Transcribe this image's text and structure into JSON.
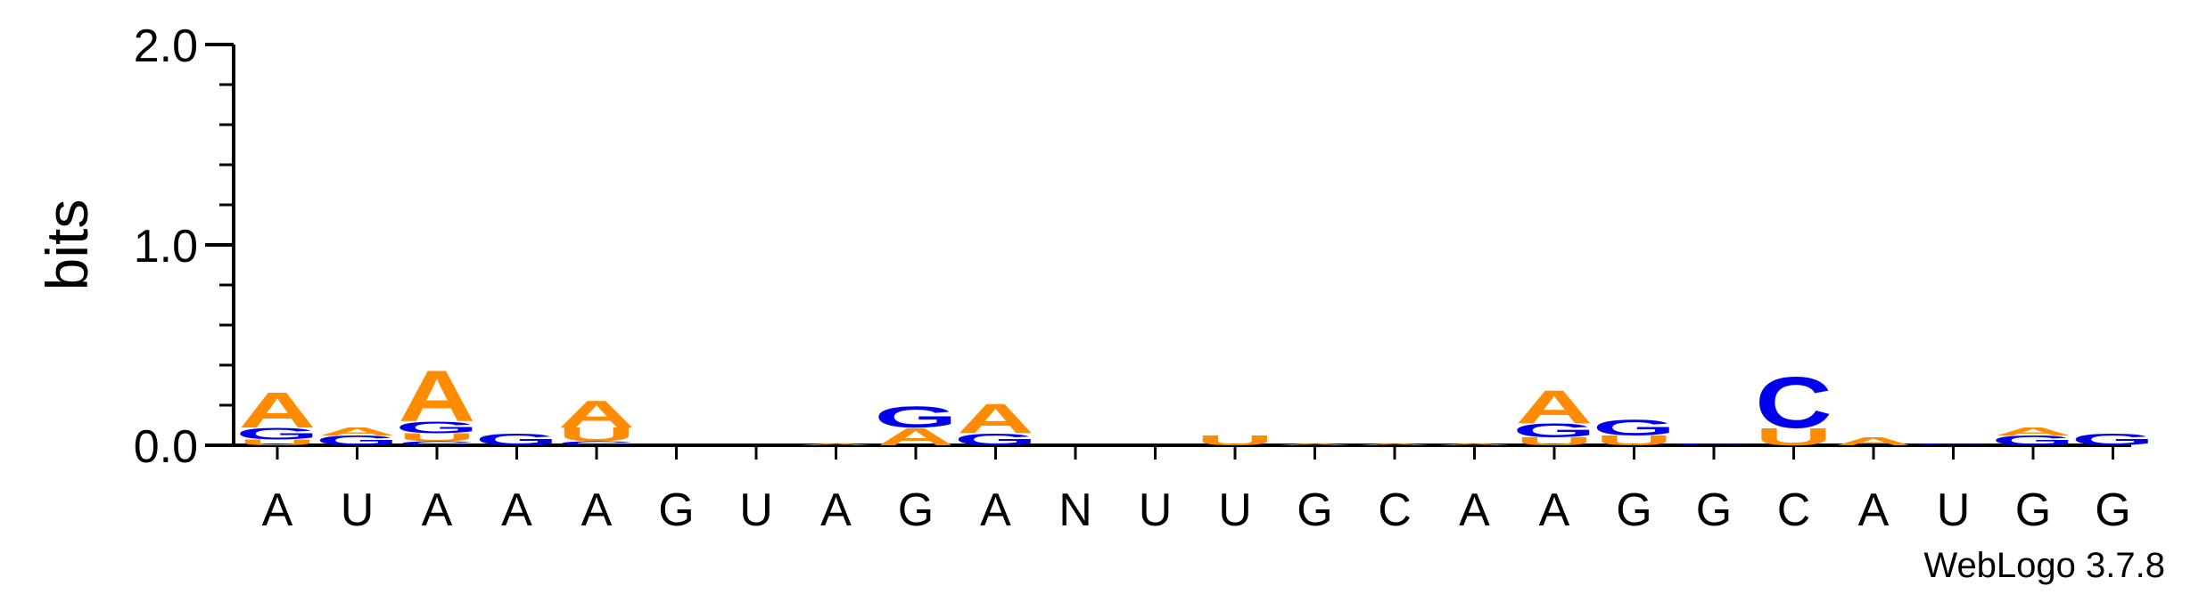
{
  "chart_data": {
    "type": "sequence-logo",
    "ylabel": "bits",
    "ylim": [
      0,
      2.0
    ],
    "yticks": [
      "0.0",
      "1.0",
      "2.0"
    ],
    "positions": [
      "A",
      "U",
      "A",
      "A",
      "A",
      "G",
      "U",
      "A",
      "G",
      "A",
      "N",
      "U",
      "U",
      "G",
      "C",
      "A",
      "A",
      "G",
      "G",
      "C",
      "A",
      "U",
      "G",
      "G"
    ],
    "stacks": [
      [
        {
          "base": "U",
          "bits": 0.03
        },
        {
          "base": "G",
          "bits": 0.06
        },
        {
          "base": "A",
          "bits": 0.18
        }
      ],
      [
        {
          "base": "G",
          "bits": 0.05
        },
        {
          "base": "A",
          "bits": 0.04
        }
      ],
      [
        {
          "base": "C",
          "bits": 0.02
        },
        {
          "base": "U",
          "bits": 0.04
        },
        {
          "base": "G",
          "bits": 0.06
        },
        {
          "base": "A",
          "bits": 0.26
        }
      ],
      [
        {
          "base": "G",
          "bits": 0.06
        }
      ],
      [
        {
          "base": "C",
          "bits": 0.02
        },
        {
          "base": "U",
          "bits": 0.07
        },
        {
          "base": "A",
          "bits": 0.14
        }
      ],
      [],
      [],
      [
        {
          "base": "A",
          "bits": 0.01
        }
      ],
      [
        {
          "base": "A",
          "bits": 0.09
        },
        {
          "base": "G",
          "bits": 0.11
        }
      ],
      [
        {
          "base": "G",
          "bits": 0.06
        },
        {
          "base": "A",
          "bits": 0.15
        }
      ],
      [],
      [],
      [
        {
          "base": "U",
          "bits": 0.05
        }
      ],
      [
        {
          "base": "A",
          "bits": 0.01
        }
      ],
      [
        {
          "base": "A",
          "bits": 0.01
        }
      ],
      [
        {
          "base": "A",
          "bits": 0.01
        }
      ],
      [
        {
          "base": "U",
          "bits": 0.04
        },
        {
          "base": "G",
          "bits": 0.07
        },
        {
          "base": "A",
          "bits": 0.17
        }
      ],
      [
        {
          "base": "U",
          "bits": 0.05
        },
        {
          "base": "G",
          "bits": 0.08
        }
      ],
      [
        {
          "base": "G",
          "bits": 0.01
        }
      ],
      [
        {
          "base": "U",
          "bits": 0.09
        },
        {
          "base": "C",
          "bits": 0.26
        }
      ],
      [
        {
          "base": "A",
          "bits": 0.04
        }
      ],
      [
        {
          "base": "G",
          "bits": 0.01
        }
      ],
      [
        {
          "base": "G",
          "bits": 0.05
        },
        {
          "base": "A",
          "bits": 0.04
        }
      ],
      [
        {
          "base": "G",
          "bits": 0.06
        }
      ]
    ],
    "colors": {
      "A": "#FF8C00",
      "U": "#FF8C00",
      "G": "#0000EE",
      "C": "#0000EE"
    }
  },
  "credit": "WebLogo 3.7.8"
}
